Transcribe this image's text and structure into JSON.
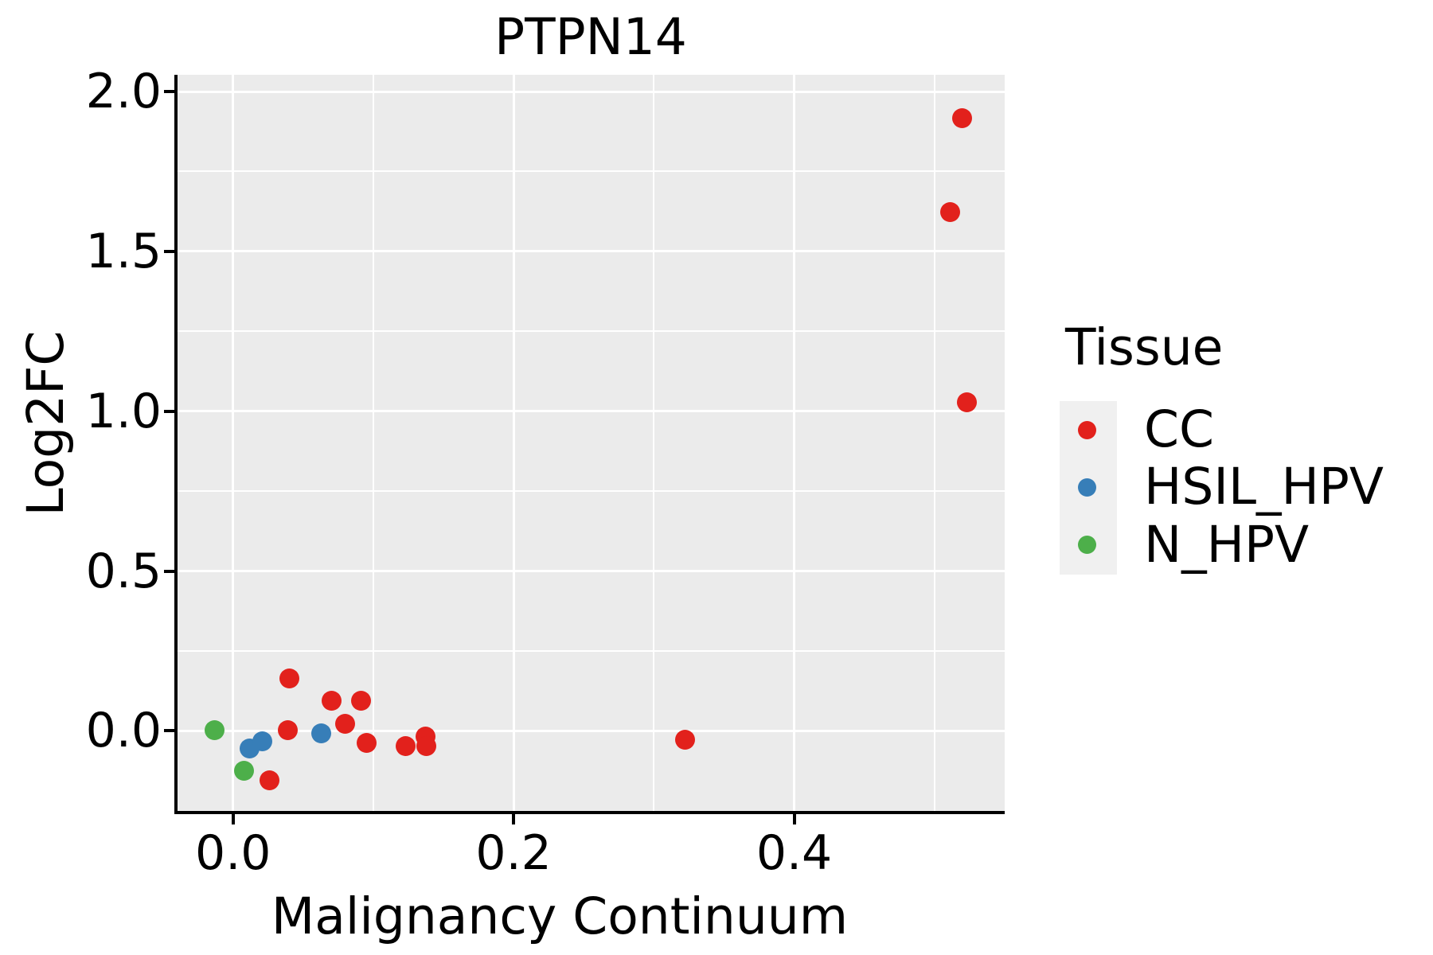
{
  "chart_data": {
    "type": "scatter",
    "title": "PTPN14",
    "xlabel": "Malignancy Continuum",
    "ylabel": "Log2FC",
    "x_range": [
      -0.0396,
      0.5501
    ],
    "y_range": [
      -0.2507,
      2.0525
    ],
    "x_ticks": [
      0.0,
      0.2,
      0.4
    ],
    "x_tick_labels": [
      "0.0",
      "0.2",
      "0.4"
    ],
    "y_ticks": [
      0.0,
      0.5,
      1.0,
      1.5,
      2.0
    ],
    "y_tick_labels": [
      "0.0",
      "0.5",
      "1.0",
      "1.5",
      "2.0"
    ],
    "x_minor_ticks": [
      0.1,
      0.3,
      0.5
    ],
    "y_minor_ticks": [
      0.25,
      0.75,
      1.25,
      1.75
    ],
    "grid": true,
    "panel_background": "#EBEBEB",
    "gridline_color": "#ffffff",
    "legend": {
      "title": "Tissue",
      "position": "right",
      "key_background": "#F0F0F0"
    },
    "series": [
      {
        "name": "CC",
        "color": "#E2211C",
        "points": [
          [
            0.04,
            0.165
          ],
          [
            0.07,
            0.093
          ],
          [
            0.091,
            0.093
          ],
          [
            0.039,
            0.001
          ],
          [
            0.08,
            0.021
          ],
          [
            0.095,
            -0.037
          ],
          [
            0.123,
            -0.047
          ],
          [
            0.137,
            -0.017
          ],
          [
            0.138,
            -0.047
          ],
          [
            0.026,
            -0.156
          ],
          [
            0.322,
            -0.027
          ],
          [
            0.52,
            1.916
          ],
          [
            0.511,
            1.622
          ],
          [
            0.523,
            1.029
          ]
        ]
      },
      {
        "name": "HSIL_HPV",
        "color": "#377EB8",
        "points": [
          [
            0.012,
            -0.054
          ],
          [
            0.021,
            -0.032
          ],
          [
            0.063,
            -0.007
          ]
        ]
      },
      {
        "name": "N_HPV",
        "color": "#4DAF4A",
        "points": [
          [
            -0.013,
            0.003
          ],
          [
            0.008,
            -0.124
          ]
        ]
      }
    ]
  }
}
